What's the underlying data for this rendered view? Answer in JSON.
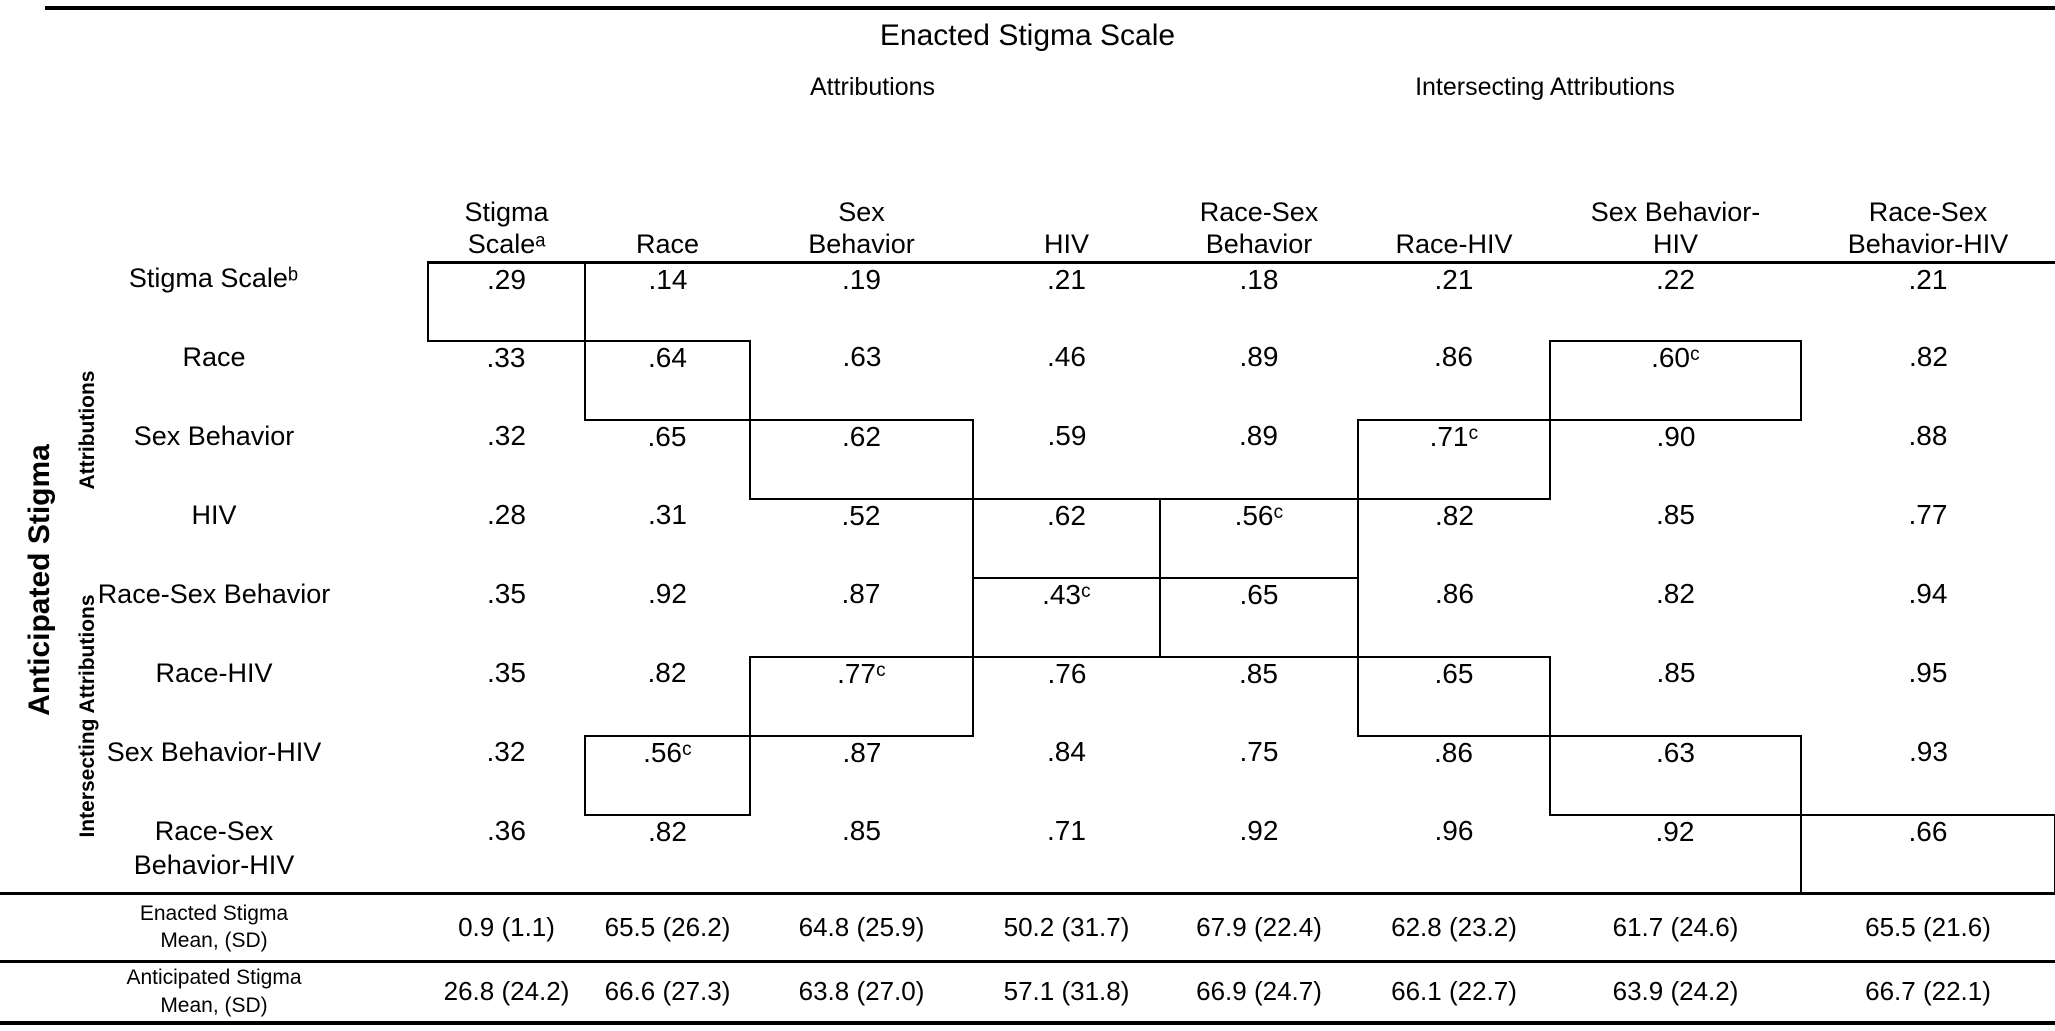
{
  "title": "Enacted Stigma Scale",
  "top_axis": {
    "group_attributions": "Attributions",
    "group_intersecting": "Intersecting Attributions"
  },
  "left_axis": {
    "scale_label": "Anticipated Stigma",
    "group_attributions": "Attributions",
    "group_intersecting": "Intersecting Attributions"
  },
  "columns": [
    "Stigma\nScaleᵃ",
    "Race",
    "Sex\nBehavior",
    "HIV",
    "Race-Sex\nBehavior",
    "Race-HIV",
    "Sex Behavior-\nHIV",
    "Race-Sex\nBehavior-HIV"
  ],
  "rows": [
    {
      "label": "Stigma Scaleᵇ",
      "values": [
        ".29",
        ".14",
        ".19",
        ".21",
        ".18",
        ".21",
        ".22",
        ".21"
      ],
      "boxed": [
        0
      ]
    },
    {
      "label": "Race",
      "values": [
        ".33",
        ".64",
        ".63",
        ".46",
        ".89",
        ".86",
        ".60ᶜ",
        ".82"
      ],
      "boxed": [
        1,
        6
      ]
    },
    {
      "label": "Sex Behavior",
      "values": [
        ".32",
        ".65",
        ".62",
        ".59",
        ".89",
        ".71ᶜ",
        ".90",
        ".88"
      ],
      "boxed": [
        2,
        5
      ]
    },
    {
      "label": "HIV",
      "values": [
        ".28",
        ".31",
        ".52",
        ".62",
        ".56ᶜ",
        ".82",
        ".85",
        ".77"
      ],
      "boxed": [
        3,
        4
      ]
    },
    {
      "label": "Race-Sex Behavior",
      "values": [
        ".35",
        ".92",
        ".87",
        ".43ᶜ",
        ".65",
        ".86",
        ".82",
        ".94"
      ],
      "boxed": [
        3,
        4
      ]
    },
    {
      "label": "Race-HIV",
      "values": [
        ".35",
        ".82",
        ".77ᶜ",
        ".76",
        ".85",
        ".65",
        ".85",
        ".95"
      ],
      "boxed": [
        2,
        5
      ]
    },
    {
      "label": "Sex Behavior-HIV",
      "values": [
        ".32",
        ".56ᶜ",
        ".87",
        ".84",
        ".75",
        ".86",
        ".63",
        ".93"
      ],
      "boxed": [
        1,
        6
      ]
    },
    {
      "label": "Race-Sex\nBehavior-HIV",
      "values": [
        ".36",
        ".82",
        ".85",
        ".71",
        ".92",
        ".96",
        ".92",
        ".66"
      ],
      "boxed": [
        7
      ]
    }
  ],
  "footer_rows": [
    {
      "label": "Enacted Stigma\nMean, (SD)",
      "values": [
        "0.9 (1.1)",
        "65.5 (26.2)",
        "64.8 (25.9)",
        "50.2 (31.7)",
        "67.9 (22.4)",
        "62.8 (23.2)",
        "61.7 (24.6)",
        "65.5 (21.6)"
      ]
    },
    {
      "label": "Anticipated Stigma\nMean, (SD)",
      "values": [
        "26.8 (24.2)",
        "66.6 (27.3)",
        "63.8 (27.0)",
        "57.1 (31.8)",
        "66.9 (24.7)",
        "66.1 (22.7)",
        "63.9 (24.2)",
        "66.7 (22.1)"
      ]
    }
  ]
}
